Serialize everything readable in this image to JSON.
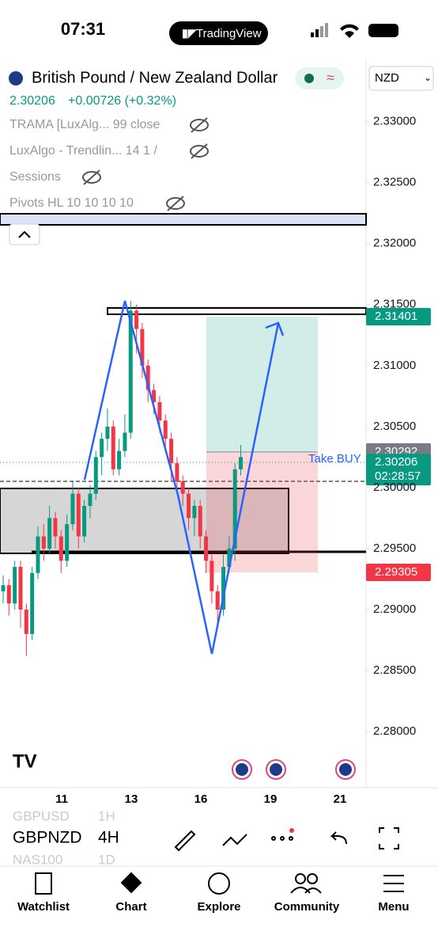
{
  "status_bar": {
    "time": "07:31",
    "app": "TradingView"
  },
  "symbol": {
    "name": "British Pound / New Zealand Dollar",
    "price": "2.30206",
    "change": "+0.00726 (+0.32%)",
    "currency": "NZD"
  },
  "indicators": [
    "TRAMA [LuxAlg... 99 close",
    "LuxAlgo - Trendlin... 14 1 /",
    "Sessions",
    "Pivots HL 10 10 10 10"
  ],
  "chart_data": {
    "type": "candlestick",
    "open": [
      2.2915,
      2.292,
      2.2905,
      2.2935,
      2.29,
      2.288,
      2.293,
      2.296,
      2.295,
      2.2975,
      2.296,
      2.294,
      2.297,
      2.2995,
      2.296,
      2.2985,
      2.2995,
      2.3025,
      2.304,
      2.305,
      2.3015,
      2.303,
      2.3045,
      2.3145,
      2.313,
      2.31,
      2.308,
      2.307,
      2.3055,
      2.304,
      2.302,
      2.3005,
      2.2995,
      2.2975,
      2.2985,
      2.296,
      2.294,
      2.2915,
      2.29,
      2.2935,
      2.295,
      2.3015
    ],
    "high": [
      2.2928,
      2.2925,
      2.294,
      2.294,
      2.2905,
      2.2935,
      2.2968,
      2.297,
      2.2985,
      2.298,
      2.2965,
      2.2978,
      2.3005,
      2.3,
      2.299,
      2.3002,
      2.303,
      2.3045,
      2.3065,
      2.3055,
      2.304,
      2.306,
      2.3153,
      2.315,
      2.3135,
      2.3105,
      2.3085,
      2.3075,
      2.306,
      2.3045,
      2.3025,
      2.301,
      2.3,
      2.299,
      2.299,
      2.2965,
      2.2945,
      2.292,
      2.2945,
      2.296,
      2.302,
      2.3035
    ],
    "low": [
      2.2905,
      2.2895,
      2.29,
      2.2885,
      2.2862,
      2.2875,
      2.2925,
      2.294,
      2.2945,
      2.295,
      2.293,
      2.2935,
      2.2965,
      2.295,
      2.2955,
      2.2975,
      2.299,
      2.301,
      2.303,
      2.301,
      2.301,
      2.3025,
      2.304,
      2.311,
      2.309,
      2.307,
      2.306,
      2.3045,
      2.303,
      2.3005,
      2.2995,
      2.2985,
      2.2965,
      2.296,
      2.295,
      2.293,
      2.2905,
      2.2888,
      2.2895,
      2.293,
      2.294,
      2.301
    ],
    "close": [
      2.292,
      2.2905,
      2.2935,
      2.29,
      2.288,
      2.293,
      2.296,
      2.295,
      2.2975,
      2.296,
      2.294,
      2.297,
      2.2995,
      2.296,
      2.2985,
      2.2995,
      2.3025,
      2.304,
      2.305,
      2.3015,
      2.303,
      2.3045,
      2.3145,
      2.313,
      2.31,
      2.308,
      2.307,
      2.3055,
      2.304,
      2.302,
      2.3005,
      2.2995,
      2.2975,
      2.2985,
      2.296,
      2.294,
      2.2915,
      2.29,
      2.2935,
      2.295,
      2.3015,
      2.3025
    ],
    "up_color": "#089981",
    "down_color": "#f23645",
    "ylim": [
      2.2754,
      2.3351
    ],
    "yticks": [
      {
        "value": 2.33,
        "label": "2.33000"
      },
      {
        "value": 2.325,
        "label": "2.32500"
      },
      {
        "value": 2.32,
        "label": "2.32000"
      },
      {
        "value": 2.315,
        "label": "2.31500"
      },
      {
        "value": 2.31,
        "label": "2.31000"
      },
      {
        "value": 2.305,
        "label": "2.30500"
      },
      {
        "value": 2.3,
        "label": "2.30000"
      },
      {
        "value": 2.295,
        "label": "2.29500"
      },
      {
        "value": 2.29,
        "label": "2.29000"
      },
      {
        "value": 2.285,
        "label": "2.28500"
      },
      {
        "value": 2.28,
        "label": "2.28000"
      }
    ],
    "x_labels": [
      "11",
      "13",
      "16",
      "19",
      "21"
    ],
    "target": 2.31401,
    "entry": 2.30292,
    "last": 2.30206,
    "countdown": "02:28:57",
    "stop": 2.29305,
    "position_label": "Take BUY"
  },
  "toolbar": {
    "watchlist": [
      [
        "GBPUSD",
        "1H"
      ],
      [
        "GBPNZD",
        "4H"
      ],
      [
        "NAS100",
        "1D"
      ]
    ]
  },
  "tabs": [
    "Watchlist",
    "Chart",
    "Explore",
    "Community",
    "Menu"
  ]
}
